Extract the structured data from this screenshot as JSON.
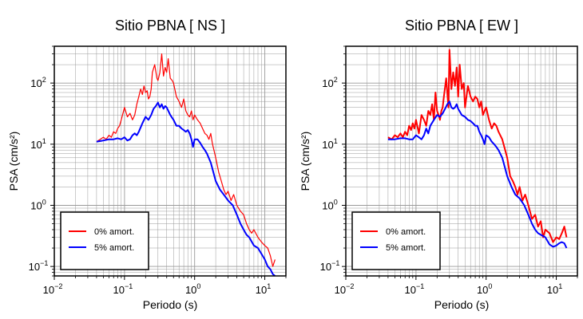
{
  "colors": {
    "series0": "#ff0000",
    "series5": "#0000ff",
    "grid": "#999999",
    "frame": "#000000"
  },
  "chart_data": [
    {
      "type": "line",
      "title": "Sitio PBNA [ NS ]",
      "xlabel": "Periodo (s)",
      "ylabel": "PSA (cm/s²)",
      "xscale": "log",
      "yscale": "log",
      "xlim": [
        0.01,
        20
      ],
      "ylim": [
        0.07,
        400
      ],
      "grid": true,
      "legend_placement": "bottom-left",
      "x_ticks": [
        {
          "v": 0.01,
          "b": "10",
          "e": "−2"
        },
        {
          "v": 0.1,
          "b": "10",
          "e": "−1"
        },
        {
          "v": 1,
          "b": "10",
          "e": "0"
        },
        {
          "v": 10,
          "b": "10",
          "e": "1"
        }
      ],
      "y_ticks": [
        {
          "v": 0.1,
          "b": "10",
          "e": "−1"
        },
        {
          "v": 1,
          "b": "10",
          "e": "0"
        },
        {
          "v": 10,
          "b": "10",
          "e": "1"
        },
        {
          "v": 100,
          "b": "10",
          "e": "2"
        }
      ],
      "series": [
        {
          "name": "0% amort.",
          "color": "#ff0000",
          "width": 1.2,
          "x": [
            0.04,
            0.045,
            0.05,
            0.055,
            0.06,
            0.065,
            0.07,
            0.075,
            0.08,
            0.085,
            0.09,
            0.1,
            0.11,
            0.12,
            0.13,
            0.14,
            0.15,
            0.16,
            0.17,
            0.18,
            0.19,
            0.2,
            0.21,
            0.22,
            0.23,
            0.24,
            0.25,
            0.27,
            0.29,
            0.3,
            0.32,
            0.34,
            0.36,
            0.38,
            0.4,
            0.42,
            0.45,
            0.48,
            0.5,
            0.55,
            0.6,
            0.65,
            0.7,
            0.75,
            0.8,
            0.85,
            0.9,
            0.95,
            1.0,
            1.1,
            1.2,
            1.3,
            1.4,
            1.5,
            1.6,
            1.7,
            1.8,
            2.0,
            2.2,
            2.4,
            2.6,
            2.8,
            3.0,
            3.3,
            3.6,
            4.0,
            4.5,
            5.0,
            5.5,
            6.0,
            6.5,
            7.0,
            8.0,
            9.0,
            10.0,
            11.0,
            12.0,
            13.0,
            14.0
          ],
          "y": [
            11,
            12,
            13,
            12,
            14,
            13,
            16,
            15,
            18,
            20,
            25,
            40,
            28,
            32,
            25,
            30,
            45,
            60,
            80,
            65,
            90,
            70,
            75,
            55,
            60,
            80,
            150,
            200,
            120,
            110,
            150,
            300,
            130,
            180,
            150,
            250,
            120,
            110,
            100,
            60,
            50,
            40,
            55,
            35,
            30,
            28,
            35,
            25,
            30,
            25,
            22,
            18,
            15,
            14,
            12,
            15,
            10,
            6,
            3.5,
            2.5,
            1.8,
            1.5,
            1.7,
            1.2,
            1.5,
            1.0,
            0.8,
            0.7,
            0.5,
            0.4,
            0.35,
            0.4,
            0.3,
            0.25,
            0.22,
            0.2,
            0.15,
            0.1,
            0.13
          ]
        },
        {
          "name": "5% amort.",
          "color": "#0000ff",
          "width": 2,
          "x": [
            0.04,
            0.05,
            0.06,
            0.07,
            0.08,
            0.09,
            0.1,
            0.11,
            0.12,
            0.13,
            0.14,
            0.15,
            0.16,
            0.18,
            0.2,
            0.22,
            0.24,
            0.26,
            0.28,
            0.3,
            0.32,
            0.34,
            0.36,
            0.38,
            0.4,
            0.45,
            0.5,
            0.55,
            0.6,
            0.65,
            0.7,
            0.75,
            0.8,
            0.85,
            0.9,
            0.95,
            1.0,
            1.1,
            1.2,
            1.3,
            1.4,
            1.5,
            1.7,
            2.0,
            2.3,
            2.6,
            3.0,
            3.5,
            4.0,
            4.5,
            5.0,
            5.5,
            6.0,
            7.0,
            8.0,
            9.0,
            10.0,
            11.0,
            12.0,
            13.0,
            14.0
          ],
          "y": [
            11,
            11.5,
            12,
            12,
            12.5,
            12,
            13,
            11.5,
            12,
            14,
            15,
            14,
            16,
            22,
            28,
            25,
            30,
            38,
            42,
            48,
            40,
            45,
            38,
            42,
            40,
            30,
            25,
            20,
            20,
            18,
            17,
            16,
            17,
            15,
            12,
            9,
            12,
            12,
            10.5,
            9,
            8,
            7,
            5,
            2.5,
            1.8,
            1.5,
            1.2,
            1.0,
            0.7,
            0.5,
            0.4,
            0.33,
            0.3,
            0.22,
            0.2,
            0.16,
            0.13,
            0.1,
            0.09,
            0.075,
            0.07
          ]
        }
      ]
    },
    {
      "type": "line",
      "title": "Sitio PBNA [ EW ]",
      "xlabel": "Periodo (s)",
      "ylabel": "PSA (cm/s²)",
      "xscale": "log",
      "yscale": "log",
      "xlim": [
        0.01,
        20
      ],
      "ylim": [
        0.07,
        400
      ],
      "grid": true,
      "legend_placement": "bottom-left",
      "x_ticks": [
        {
          "v": 0.01,
          "b": "10",
          "e": "−2"
        },
        {
          "v": 0.1,
          "b": "10",
          "e": "−1"
        },
        {
          "v": 1,
          "b": "10",
          "e": "0"
        },
        {
          "v": 10,
          "b": "10",
          "e": "1"
        }
      ],
      "y_ticks": [
        {
          "v": 0.1,
          "b": "10",
          "e": "−1"
        },
        {
          "v": 1,
          "b": "10",
          "e": "0"
        },
        {
          "v": 10,
          "b": "10",
          "e": "1"
        },
        {
          "v": 100,
          "b": "10",
          "e": "2"
        }
      ],
      "series": [
        {
          "name": "0% amort.",
          "color": "#ff0000",
          "width": 2,
          "x": [
            0.04,
            0.045,
            0.05,
            0.055,
            0.06,
            0.065,
            0.07,
            0.075,
            0.08,
            0.085,
            0.09,
            0.095,
            0.1,
            0.11,
            0.12,
            0.13,
            0.14,
            0.15,
            0.16,
            0.17,
            0.18,
            0.19,
            0.2,
            0.21,
            0.22,
            0.23,
            0.24,
            0.25,
            0.27,
            0.29,
            0.3,
            0.32,
            0.34,
            0.36,
            0.38,
            0.4,
            0.42,
            0.45,
            0.48,
            0.5,
            0.55,
            0.6,
            0.65,
            0.7,
            0.75,
            0.8,
            0.85,
            0.9,
            0.95,
            1.0,
            1.1,
            1.2,
            1.3,
            1.4,
            1.5,
            1.7,
            2.0,
            2.2,
            2.4,
            2.6,
            2.8,
            3.0,
            3.3,
            3.6,
            4.0,
            4.5,
            5.0,
            5.5,
            6.0,
            6.5,
            7.0,
            8.0,
            9.0,
            10.0,
            11.0,
            12.0,
            13.0,
            14.0
          ],
          "y": [
            13,
            12,
            14,
            13,
            15,
            13,
            16,
            14,
            20,
            17,
            22,
            18,
            25,
            15,
            30,
            25,
            20,
            35,
            30,
            45,
            25,
            70,
            35,
            30,
            25,
            35,
            40,
            60,
            120,
            40,
            350,
            80,
            150,
            90,
            180,
            60,
            200,
            80,
            100,
            40,
            90,
            60,
            50,
            60,
            55,
            40,
            50,
            30,
            35,
            40,
            25,
            18,
            22,
            20,
            16,
            12,
            6,
            3,
            2.5,
            2,
            1.5,
            2,
            1.2,
            1.5,
            1.0,
            0.6,
            0.7,
            0.45,
            0.55,
            0.3,
            0.4,
            0.35,
            0.25,
            0.3,
            0.28,
            0.35,
            0.45,
            0.3
          ]
        },
        {
          "name": "5% amort.",
          "color": "#0000ff",
          "width": 2,
          "x": [
            0.04,
            0.05,
            0.06,
            0.07,
            0.08,
            0.09,
            0.1,
            0.11,
            0.12,
            0.13,
            0.14,
            0.15,
            0.16,
            0.18,
            0.2,
            0.22,
            0.24,
            0.26,
            0.28,
            0.3,
            0.32,
            0.34,
            0.36,
            0.38,
            0.4,
            0.45,
            0.5,
            0.55,
            0.6,
            0.65,
            0.7,
            0.75,
            0.8,
            0.85,
            0.9,
            0.95,
            1.0,
            1.1,
            1.2,
            1.3,
            1.4,
            1.5,
            1.7,
            2.0,
            2.3,
            2.6,
            3.0,
            3.5,
            4.0,
            4.5,
            5.0,
            5.5,
            6.0,
            7.0,
            8.0,
            9.0,
            10.0,
            11.0,
            12.0,
            13.0,
            14.0
          ],
          "y": [
            12,
            12,
            12.5,
            12.5,
            12,
            12,
            14,
            13,
            12,
            14,
            18,
            15,
            20,
            25,
            30,
            28,
            32,
            38,
            45,
            50,
            40,
            38,
            40,
            45,
            38,
            30,
            28,
            25,
            24,
            22,
            20,
            20,
            16,
            14,
            12,
            10,
            14,
            13,
            11,
            10,
            9,
            8,
            6,
            3,
            2,
            1.5,
            1.3,
            1.0,
            0.7,
            0.5,
            0.4,
            0.35,
            0.33,
            0.3,
            0.23,
            0.21,
            0.22,
            0.24,
            0.25,
            0.24,
            0.2
          ]
        }
      ]
    }
  ]
}
